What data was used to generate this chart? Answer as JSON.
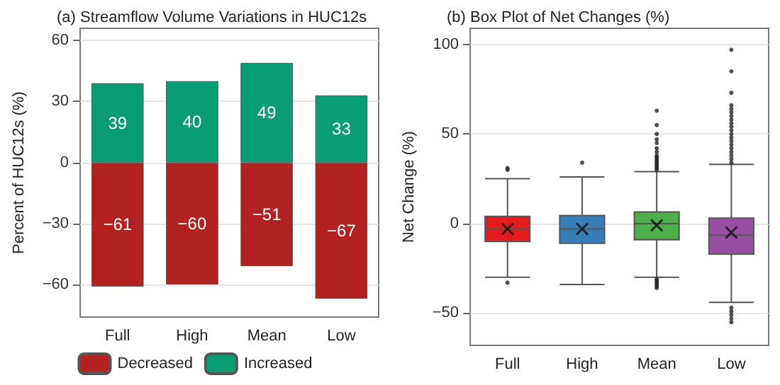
{
  "chart_data": [
    {
      "type": "bar",
      "title": "(a) Streamflow Volume Variations in HUC12s",
      "ylabel": "Percent of HUC12s (%)",
      "categories": [
        "Full",
        "High",
        "Mean",
        "Low"
      ],
      "stacked": true,
      "data_labels": true,
      "ylim": [
        -76,
        66
      ],
      "yticks": [
        -60,
        -30,
        0,
        30,
        60
      ],
      "grid": "y",
      "legend": "bottom",
      "series": [
        {
          "name": "Decreased",
          "color": "#b22222",
          "values": [
            -61,
            -60,
            -51,
            -67
          ]
        },
        {
          "name": "Increased",
          "color": "#0a9d74",
          "values": [
            39,
            40,
            49,
            33
          ]
        }
      ]
    },
    {
      "type": "box",
      "title": "(b) Box Plot of Net Changes (%)",
      "ylabel": "Net Change (%)",
      "categories": [
        "Full",
        "High",
        "Mean",
        "Low"
      ],
      "ylim": [
        -68,
        109
      ],
      "yticks": [
        -50,
        0,
        50,
        100
      ],
      "grid": "y",
      "colors": [
        "#e41a1c",
        "#377eb8",
        "#4daf4a",
        "#984ea3"
      ],
      "boxes": [
        {
          "low": -30,
          "q1": -10,
          "median": -3,
          "q3": 4,
          "high": 25,
          "mean": -3,
          "outliers": [
            30,
            31,
            -33
          ]
        },
        {
          "low": -34,
          "q1": -11,
          "median": -3,
          "q3": 4.5,
          "high": 26,
          "mean": -3,
          "outliers": [
            34
          ]
        },
        {
          "low": -30,
          "q1": -9,
          "median": 0,
          "q3": 6.5,
          "high": 29,
          "mean": -1,
          "outliers": [
            30,
            31,
            32,
            33,
            34,
            35,
            36,
            37,
            38,
            40,
            42,
            45,
            47,
            50,
            55,
            63,
            -31,
            -32,
            -33,
            -34,
            -35,
            -36
          ]
        },
        {
          "low": -44,
          "q1": -17,
          "median": -6.5,
          "q3": 3,
          "high": 33,
          "mean": -5,
          "outliers": [
            34,
            36,
            38,
            40,
            42,
            44,
            46,
            48,
            50,
            52,
            54,
            56,
            58,
            60,
            62,
            64,
            66,
            73,
            85,
            97,
            -47,
            -49,
            -51,
            -53,
            -55
          ]
        }
      ]
    }
  ]
}
